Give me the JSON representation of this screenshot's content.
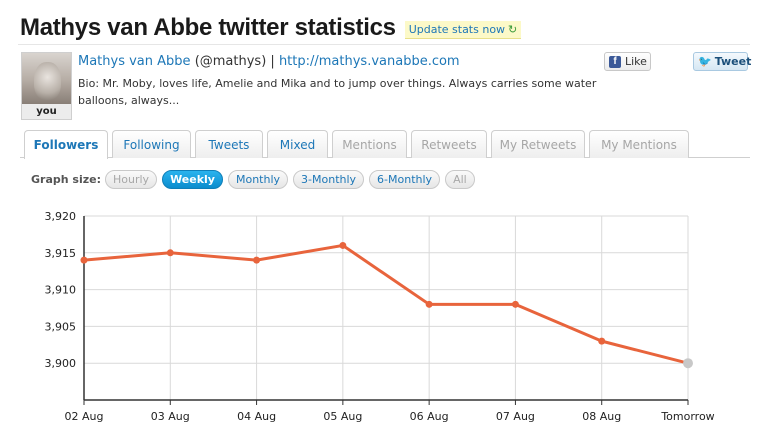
{
  "header": {
    "title": "Mathys van Abbe twitter statistics",
    "update_label": "Update stats now"
  },
  "profile": {
    "name": "Mathys van Abbe",
    "handle": "(@mathys)",
    "separator": "|",
    "url": "http://mathys.vanabbe.com",
    "bio_line1": "Bio: Mr. Moby, loves life, Amelie and Mika and to jump over things. Always carries some water",
    "bio_line2": "balloons, always...",
    "avatar_label": "you"
  },
  "social": {
    "like_label": "Like",
    "tweet_label": "Tweet"
  },
  "tabs": [
    {
      "label": "Followers",
      "state": "active"
    },
    {
      "label": "Following",
      "state": "enabled"
    },
    {
      "label": "Tweets",
      "state": "enabled"
    },
    {
      "label": "Mixed",
      "state": "enabled"
    },
    {
      "label": "Mentions",
      "state": "disabled"
    },
    {
      "label": "Retweets",
      "state": "disabled"
    },
    {
      "label": "My Retweets",
      "state": "disabled"
    },
    {
      "label": "My Mentions",
      "state": "disabled"
    }
  ],
  "graph_size": {
    "label": "Graph size:",
    "options": [
      {
        "label": "Hourly",
        "state": "disabled"
      },
      {
        "label": "Weekly",
        "state": "active"
      },
      {
        "label": "Monthly",
        "state": "enabled"
      },
      {
        "label": "3-Monthly",
        "state": "enabled"
      },
      {
        "label": "6-Monthly",
        "state": "enabled"
      },
      {
        "label": "All",
        "state": "disabled"
      }
    ]
  },
  "colors": {
    "line": "#e8643c",
    "grid": "#d9d9d9",
    "last_point": "#c8c8c8",
    "link": "#1d77b7"
  },
  "chart_data": {
    "type": "line",
    "categories": [
      "02 Aug",
      "03 Aug",
      "04 Aug",
      "05 Aug",
      "06 Aug",
      "07 Aug",
      "08 Aug",
      "Tomorrow"
    ],
    "values": [
      3914,
      3915,
      3914,
      3916,
      3908,
      3908,
      3903,
      3900
    ],
    "yticks": [
      "3,920",
      "3,915",
      "3,910",
      "3,905",
      "3,900"
    ],
    "ytick_values": [
      3920,
      3915,
      3910,
      3905,
      3900
    ],
    "ylim": [
      3895,
      3920
    ],
    "grid": true,
    "title": "",
    "xlabel": "",
    "ylabel": ""
  }
}
